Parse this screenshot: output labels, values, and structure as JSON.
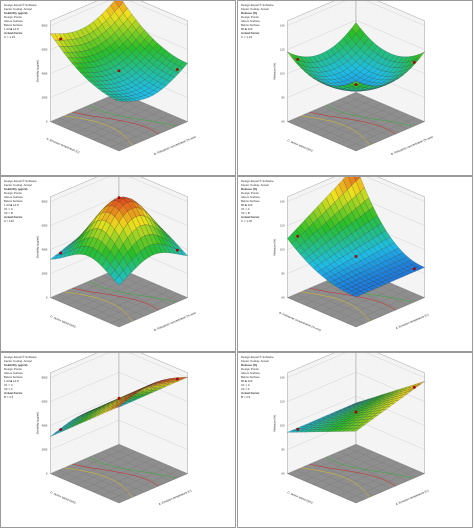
{
  "panels": [
    {
      "id": "p1",
      "header": [
        "Design-Expert® Software",
        "Factor Coding: Actual",
        "Solubility (μg/ml)",
        "Design Points",
        "Above Surface",
        "Below Surface",
        "1.23  ■  12.8",
        "Actual Factor",
        "C = 1.23"
      ],
      "title": "3D Surface",
      "zlabel": "Solubility (μg/ml)",
      "xlabel": "B: Poloxamer concentration (% w/w)",
      "ylabel": "A: Emulsion temperature (C)",
      "zticks": [
        "0",
        "2000",
        "4000",
        "6000",
        "8000"
      ]
    },
    {
      "id": "p2",
      "header": [
        "Design-Expert® Software",
        "Factor Coding: Actual",
        "Release (%)",
        "Design Points",
        "Above Surface",
        "Below Surface",
        "80  ■  123",
        "Actual Factor",
        "C = 1.23"
      ],
      "title": "3D Surface",
      "zlabel": "Release (%)",
      "xlabel": "B: Poloxamer concentration (% w/w)",
      "ylabel": "C: Screw speed (rpm)",
      "zticks": [
        "60",
        "80",
        "100",
        "120",
        "140"
      ]
    },
    {
      "id": "p3",
      "header": [
        "Design-Expert® Software",
        "Factor Coding: Actual",
        "Solubility (μg/ml)",
        "Design Points",
        "Above Surface",
        "Below Surface",
        "1.23  ■  12.8",
        "X1 = C",
        "X2 = B",
        "Actual Factor",
        "A = 120"
      ],
      "title": "3D Surface",
      "zlabel": "Solubility (μg/ml)",
      "xlabel": "B: Poloxamer concentration (% w/w)",
      "ylabel": "C: Screw speed (rpm)",
      "zticks": [
        "0",
        "2000",
        "4000",
        "6000",
        "8000"
      ]
    },
    {
      "id": "p4",
      "header": [
        "Design-Expert® Software",
        "Factor Coding: Actual",
        "Release (%)",
        "Design Points",
        "Above Surface",
        "Below Surface",
        "80  ■  123",
        "X1 = A",
        "X2 = B",
        "Actual Factor",
        "C = 1.00"
      ],
      "title": "3D Surface",
      "zlabel": "Release (%)",
      "xlabel": "A: Emulsion temperature (C)",
      "ylabel": "B: Poloxamer concentration (% w/w)",
      "zticks": [
        "60",
        "80",
        "100",
        "120",
        "140"
      ]
    },
    {
      "id": "p5",
      "header": [
        "Design-Expert® Software",
        "Factor Coding: Actual",
        "Solubility (μg/ml)",
        "Design Points",
        "Above Surface",
        "Below Surface",
        "1.23  ■  12.8",
        "X1 = C",
        "X2 = A",
        "Actual Factor",
        "B = 2.5"
      ],
      "title": "3D Surface",
      "zlabel": "Solubility (μg/ml)",
      "xlabel": "A: Emulsion temperature (C)",
      "ylabel": "C: Screw speed (rpm)",
      "zticks": [
        "0",
        "2000",
        "4000",
        "6000",
        "8000"
      ]
    },
    {
      "id": "p6",
      "header": [
        "Design-Expert® Software",
        "Factor Coding: Actual",
        "Release (%)",
        "Design Points",
        "Above Surface",
        "Below Surface",
        "80  ■  123",
        "X1 = C",
        "X2 = A",
        "Actual Factor",
        "B = 2.5"
      ],
      "title": "3D Surface",
      "zlabel": "Release (%)",
      "xlabel": "A: Emulsion temperature (C)",
      "ylabel": "C: Screw speed (rpm)",
      "zticks": [
        "60",
        "80",
        "100",
        "120",
        "140"
      ]
    }
  ],
  "chart_data": [
    {
      "type": "heatmap",
      "title": "3D Surface",
      "surface": "saddle-rise",
      "zlabel": "Solubility (μg/ml)",
      "zrange": [
        0,
        8000
      ],
      "grid": true
    },
    {
      "type": "heatmap",
      "title": "3D Surface",
      "surface": "bowl",
      "zlabel": "Release (%)",
      "zrange": [
        60,
        140
      ],
      "grid": true
    },
    {
      "type": "heatmap",
      "title": "3D Surface",
      "surface": "dome",
      "zlabel": "Solubility (μg/ml)",
      "zrange": [
        0,
        8000
      ],
      "grid": true
    },
    {
      "type": "heatmap",
      "title": "3D Surface",
      "surface": "rising-corner",
      "zlabel": "Release (%)",
      "zrange": [
        60,
        140
      ],
      "grid": true
    },
    {
      "type": "heatmap",
      "title": "3D Surface",
      "surface": "falling-slope",
      "zlabel": "Solubility (μg/ml)",
      "zrange": [
        0,
        8000
      ],
      "grid": true
    },
    {
      "type": "heatmap",
      "title": "3D Surface",
      "surface": "tilted-plane",
      "zlabel": "Release (%)",
      "zrange": [
        60,
        140
      ],
      "grid": true
    }
  ],
  "colors": {
    "border": "#9a9a9a",
    "floor": "#8e8e8e",
    "wall": "#f4f4f4",
    "grid": "#bdbdbd"
  }
}
